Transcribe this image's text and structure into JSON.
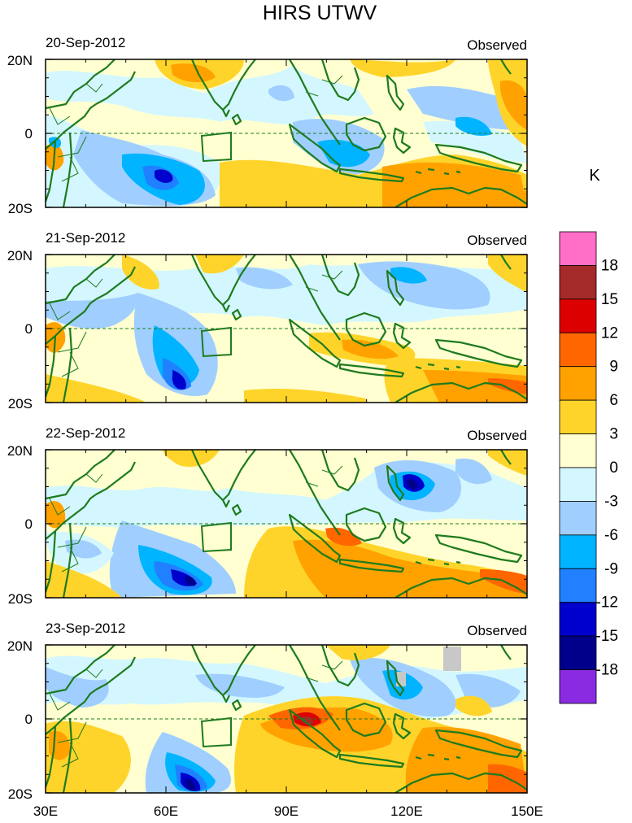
{
  "title": "HIRS UTWV",
  "observed_label": "Observed",
  "panels": [
    {
      "date": "20-Sep-2012"
    },
    {
      "date": "21-Sep-2012"
    },
    {
      "date": "22-Sep-2012"
    },
    {
      "date": "23-Sep-2012"
    }
  ],
  "y_ticks": [
    "20N",
    "0",
    "20S"
  ],
  "x_ticks": [
    "30E",
    "60E",
    "90E",
    "120E",
    "150E"
  ],
  "colorbar": {
    "unit": "K",
    "labels": [
      "18",
      "15",
      "12",
      "9",
      "6",
      "3",
      "0",
      "-3",
      "-6",
      "-9",
      "-12",
      "-15",
      "-18"
    ],
    "colors": [
      "#ff6ec7",
      "#a52a2a",
      "#dd0000",
      "#ff6600",
      "#ffa200",
      "#ffd42a",
      "#ffffd2",
      "#d4f7ff",
      "#a0cfff",
      "#00b4ff",
      "#2080ff",
      "#0000cc",
      "#00008b",
      "#8a2be2"
    ]
  },
  "coastline_color": "#1e7b1e"
}
